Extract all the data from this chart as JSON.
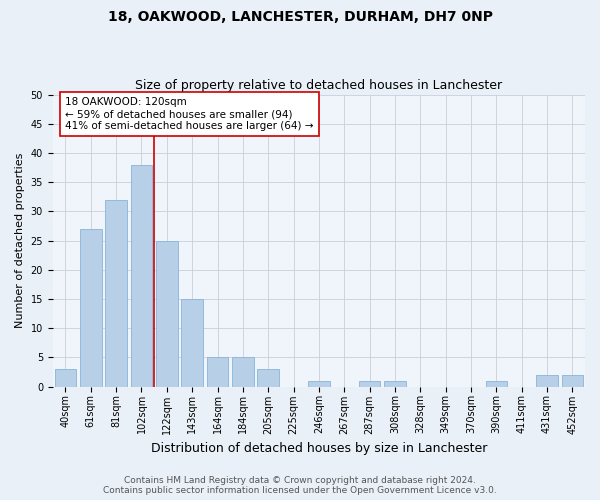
{
  "title": "18, OAKWOOD, LANCHESTER, DURHAM, DH7 0NP",
  "subtitle": "Size of property relative to detached houses in Lanchester",
  "xlabel": "Distribution of detached houses by size in Lanchester",
  "ylabel": "Number of detached properties",
  "categories": [
    "40sqm",
    "61sqm",
    "81sqm",
    "102sqm",
    "122sqm",
    "143sqm",
    "164sqm",
    "184sqm",
    "205sqm",
    "225sqm",
    "246sqm",
    "267sqm",
    "287sqm",
    "308sqm",
    "328sqm",
    "349sqm",
    "370sqm",
    "390sqm",
    "411sqm",
    "431sqm",
    "452sqm"
  ],
  "values": [
    3,
    27,
    32,
    38,
    25,
    15,
    5,
    5,
    3,
    0,
    1,
    0,
    1,
    1,
    0,
    0,
    0,
    1,
    0,
    2,
    2
  ],
  "bar_color": "#b8cfe8",
  "bar_edge_color": "#8ab4d8",
  "vline_color": "#cc0000",
  "vline_x_index": 3.5,
  "annotation_box_text": "18 OAKWOOD: 120sqm\n← 59% of detached houses are smaller (94)\n41% of semi-detached houses are larger (64) →",
  "ylim": [
    0,
    50
  ],
  "yticks": [
    0,
    5,
    10,
    15,
    20,
    25,
    30,
    35,
    40,
    45,
    50
  ],
  "bg_color": "#eaf0f8",
  "plot_bg_color": "#f0f4fb",
  "footer_text": "Contains HM Land Registry data © Crown copyright and database right 2024.\nContains public sector information licensed under the Open Government Licence v3.0.",
  "title_fontsize": 10,
  "subtitle_fontsize": 9,
  "xlabel_fontsize": 9,
  "ylabel_fontsize": 8,
  "annotation_fontsize": 7.5,
  "footer_fontsize": 6.5,
  "tick_fontsize": 7
}
